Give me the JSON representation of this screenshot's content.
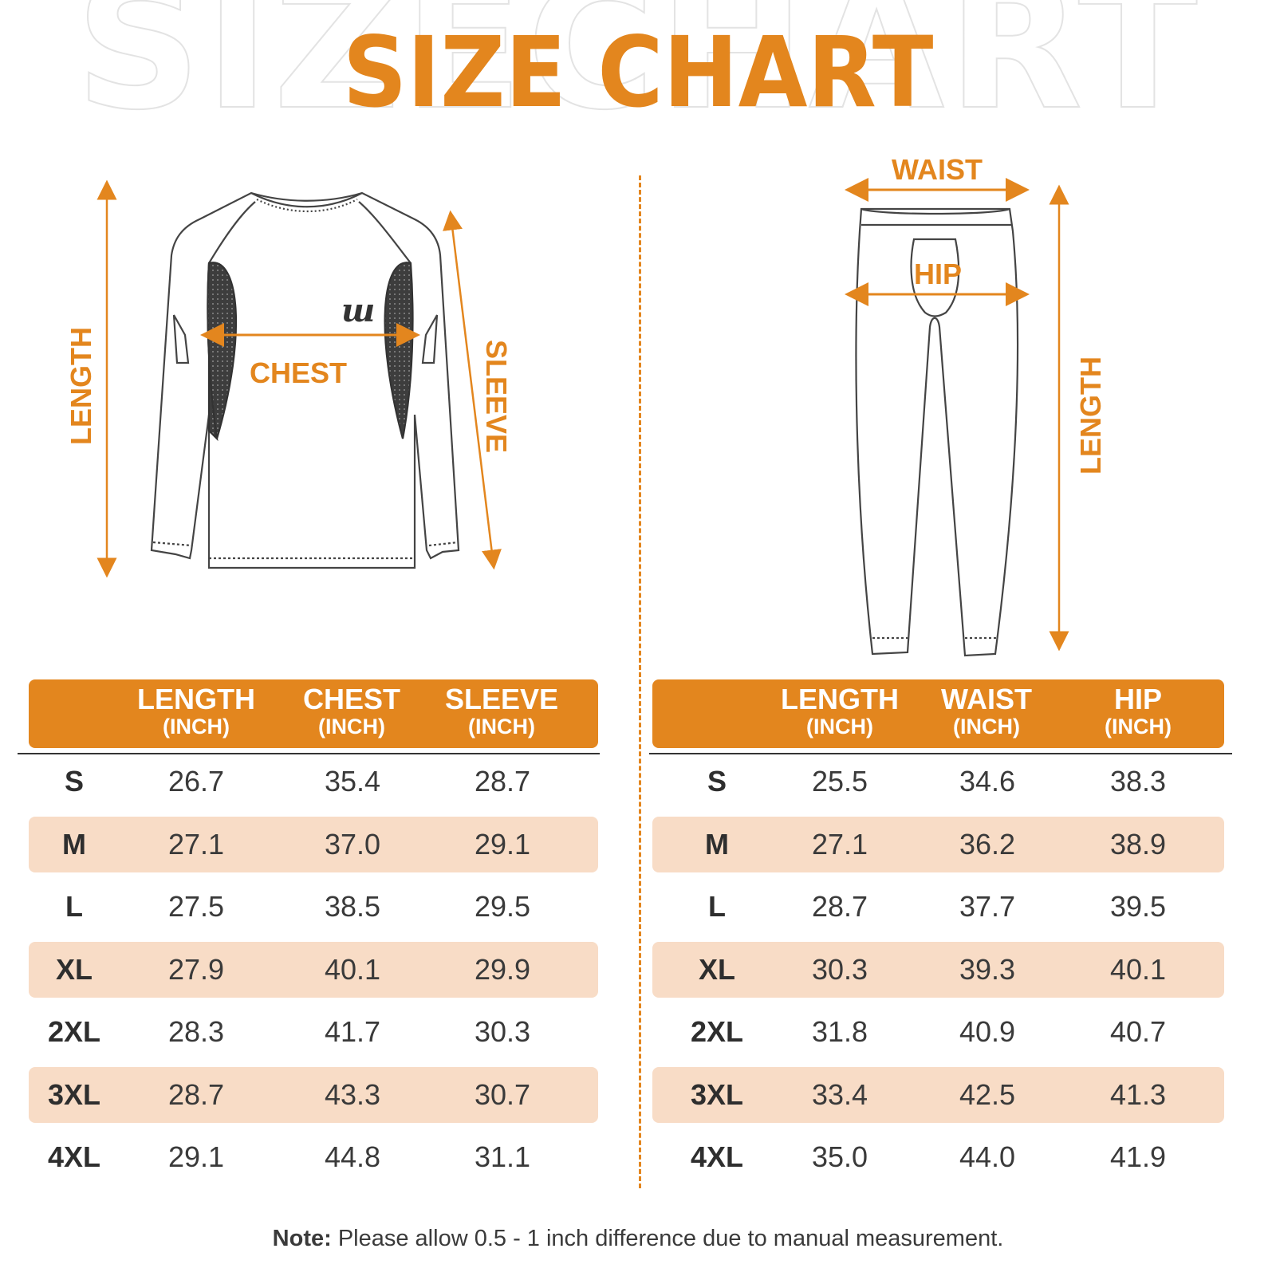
{
  "header": {
    "background_text": "SIZECHART",
    "title": "SIZE CHART"
  },
  "colors": {
    "accent": "#e3861e",
    "row_shade": "#f8dcc6",
    "text": "#333333"
  },
  "shirt": {
    "labels": {
      "length": "LENGTH",
      "chest": "CHEST",
      "sleeve": "SLEEVE"
    },
    "logo": "ш",
    "table": {
      "headers": [
        {
          "label": "LENGTH",
          "unit": "(INCH)"
        },
        {
          "label": "CHEST",
          "unit": "(INCH)"
        },
        {
          "label": "SLEEVE",
          "unit": "(INCH)"
        }
      ],
      "rows": [
        [
          "S",
          "26.7",
          "35.4",
          "28.7"
        ],
        [
          "M",
          "27.1",
          "37.0",
          "29.1"
        ],
        [
          "L",
          "27.5",
          "38.5",
          "29.5"
        ],
        [
          "XL",
          "27.9",
          "40.1",
          "29.9"
        ],
        [
          "2XL",
          "28.3",
          "41.7",
          "30.3"
        ],
        [
          "3XL",
          "28.7",
          "43.3",
          "30.7"
        ],
        [
          "4XL",
          "29.1",
          "44.8",
          "31.1"
        ]
      ]
    }
  },
  "pants": {
    "labels": {
      "waist": "WAIST",
      "hip": "HIP",
      "length": "LENGTH"
    },
    "table": {
      "headers": [
        {
          "label": "LENGTH",
          "unit": "(INCH)"
        },
        {
          "label": "WAIST",
          "unit": "(INCH)"
        },
        {
          "label": "HIP",
          "unit": "(INCH)"
        }
      ],
      "rows": [
        [
          "S",
          "25.5",
          "34.6",
          "38.3"
        ],
        [
          "M",
          "27.1",
          "36.2",
          "38.9"
        ],
        [
          "L",
          "28.7",
          "37.7",
          "39.5"
        ],
        [
          "XL",
          "30.3",
          "39.3",
          "40.1"
        ],
        [
          "2XL",
          "31.8",
          "40.9",
          "40.7"
        ],
        [
          "3XL",
          "33.4",
          "42.5",
          "41.3"
        ],
        [
          "4XL",
          "35.0",
          "44.0",
          "41.9"
        ]
      ]
    }
  },
  "note": {
    "label": "Note:",
    "text": " Please allow 0.5 - 1 inch difference due to manual measurement."
  }
}
